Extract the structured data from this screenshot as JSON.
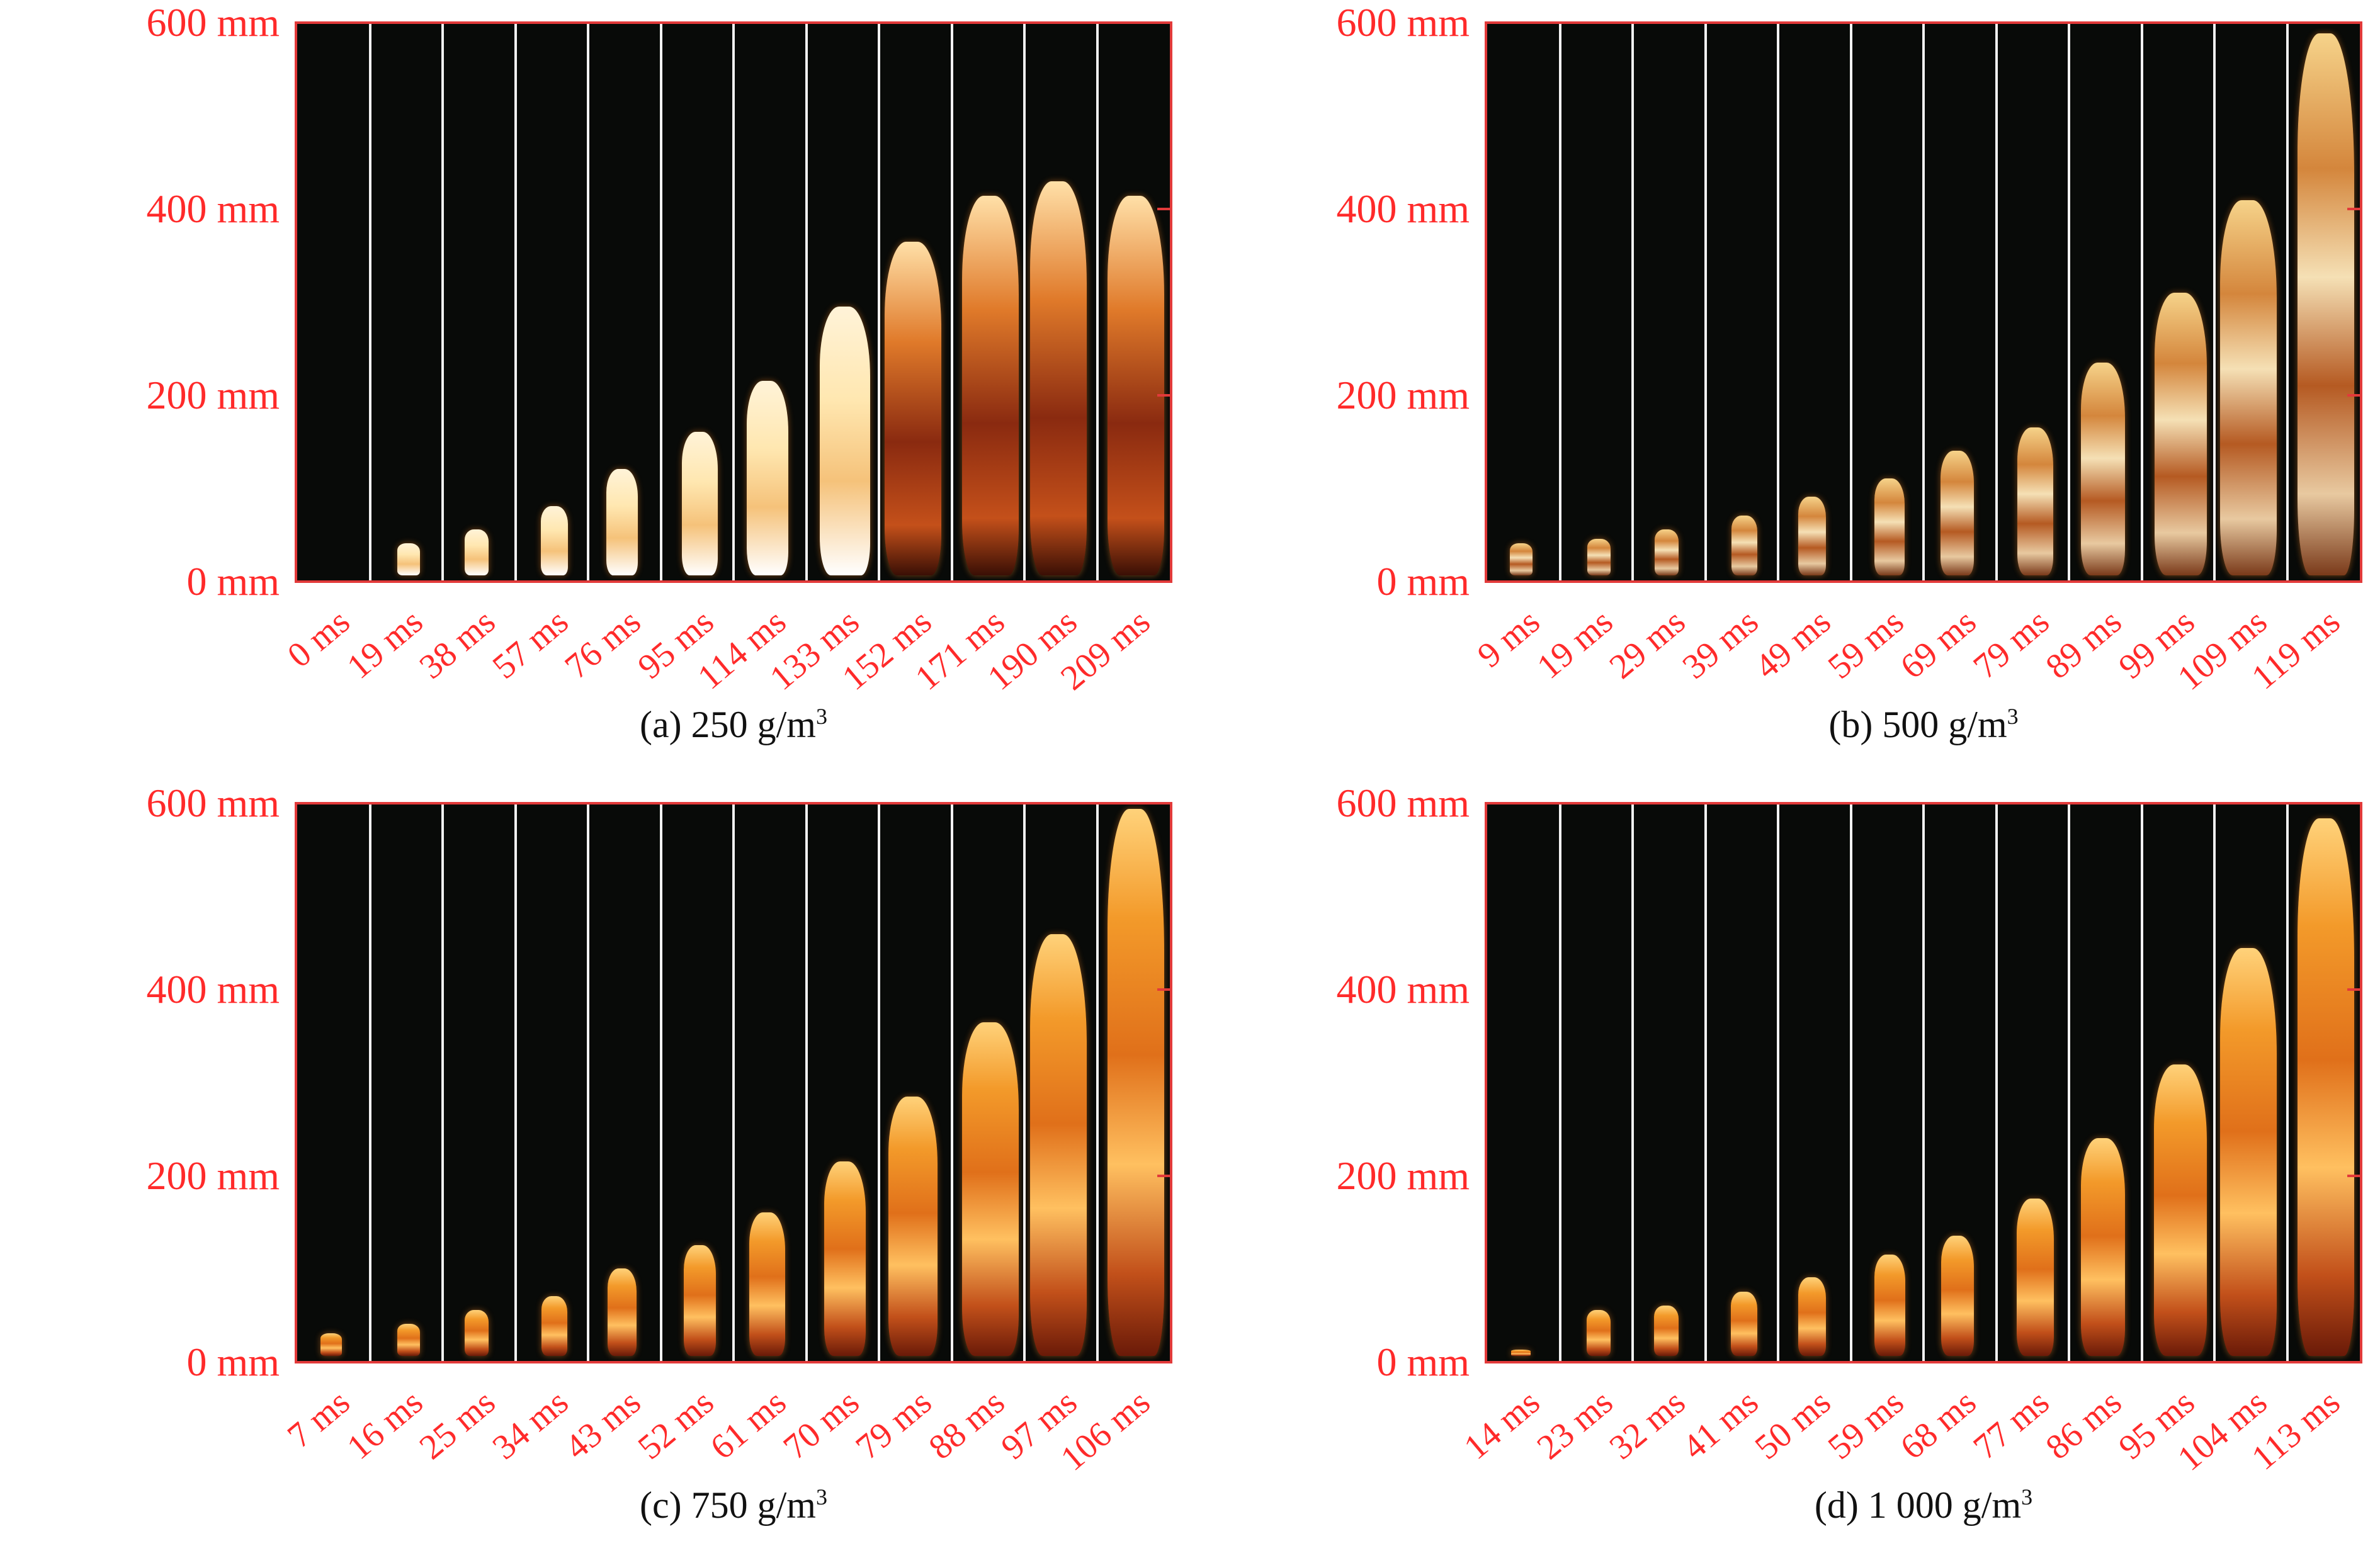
{
  "y_axis": [
    "600 mm",
    "400 mm",
    "200 mm",
    "0 mm"
  ],
  "panels": [
    {
      "id": "a",
      "caption": "(a) 250 g/m",
      "caption_sup": "3",
      "times": [
        "0 ms",
        "19 ms",
        "38 ms",
        "57 ms",
        "76 ms",
        "95 ms",
        "114 ms",
        "133 ms",
        "152 ms",
        "171 ms",
        "190 ms",
        "209 ms"
      ],
      "flame_heights_mm": [
        0,
        40,
        55,
        80,
        120,
        160,
        215,
        295,
        365,
        415,
        430,
        415
      ],
      "flame_style": "white"
    },
    {
      "id": "b",
      "caption": "(b) 500 g/m",
      "caption_sup": "3",
      "times": [
        "9 ms",
        "19 ms",
        "29 ms",
        "39 ms",
        "49 ms",
        "59 ms",
        "69 ms",
        "79 ms",
        "89 ms",
        "99 ms",
        "109 ms",
        "119 ms"
      ],
      "flame_heights_mm": [
        40,
        45,
        55,
        70,
        90,
        110,
        140,
        165,
        235,
        310,
        410,
        590
      ],
      "flame_style": "mixed"
    },
    {
      "id": "c",
      "caption": "(c) 750 g/m",
      "caption_sup": "3",
      "times": [
        "7 ms",
        "16 ms",
        "25 ms",
        "34 ms",
        "43 ms",
        "52 ms",
        "61 ms",
        "70 ms",
        "79 ms",
        "88 ms",
        "97 ms",
        "106 ms"
      ],
      "flame_heights_mm": [
        30,
        40,
        55,
        70,
        100,
        125,
        160,
        215,
        285,
        365,
        460,
        595
      ],
      "flame_style": "orange"
    },
    {
      "id": "d",
      "caption": "(d) 1 000 g/m",
      "caption_sup": "3",
      "times": [
        "14 ms",
        "23 ms",
        "32 ms",
        "41 ms",
        "50 ms",
        "59 ms",
        "68 ms",
        "77 ms",
        "86 ms",
        "95 ms",
        "104 ms",
        "113 ms"
      ],
      "flame_heights_mm": [
        10,
        55,
        60,
        75,
        90,
        115,
        135,
        175,
        240,
        320,
        445,
        585
      ],
      "flame_style": "orange"
    }
  ],
  "colors": {
    "axis_red": "#e23a3a",
    "label_red": "#ff2a2a",
    "background": "#080a08",
    "divider": "#f2f2f2"
  }
}
